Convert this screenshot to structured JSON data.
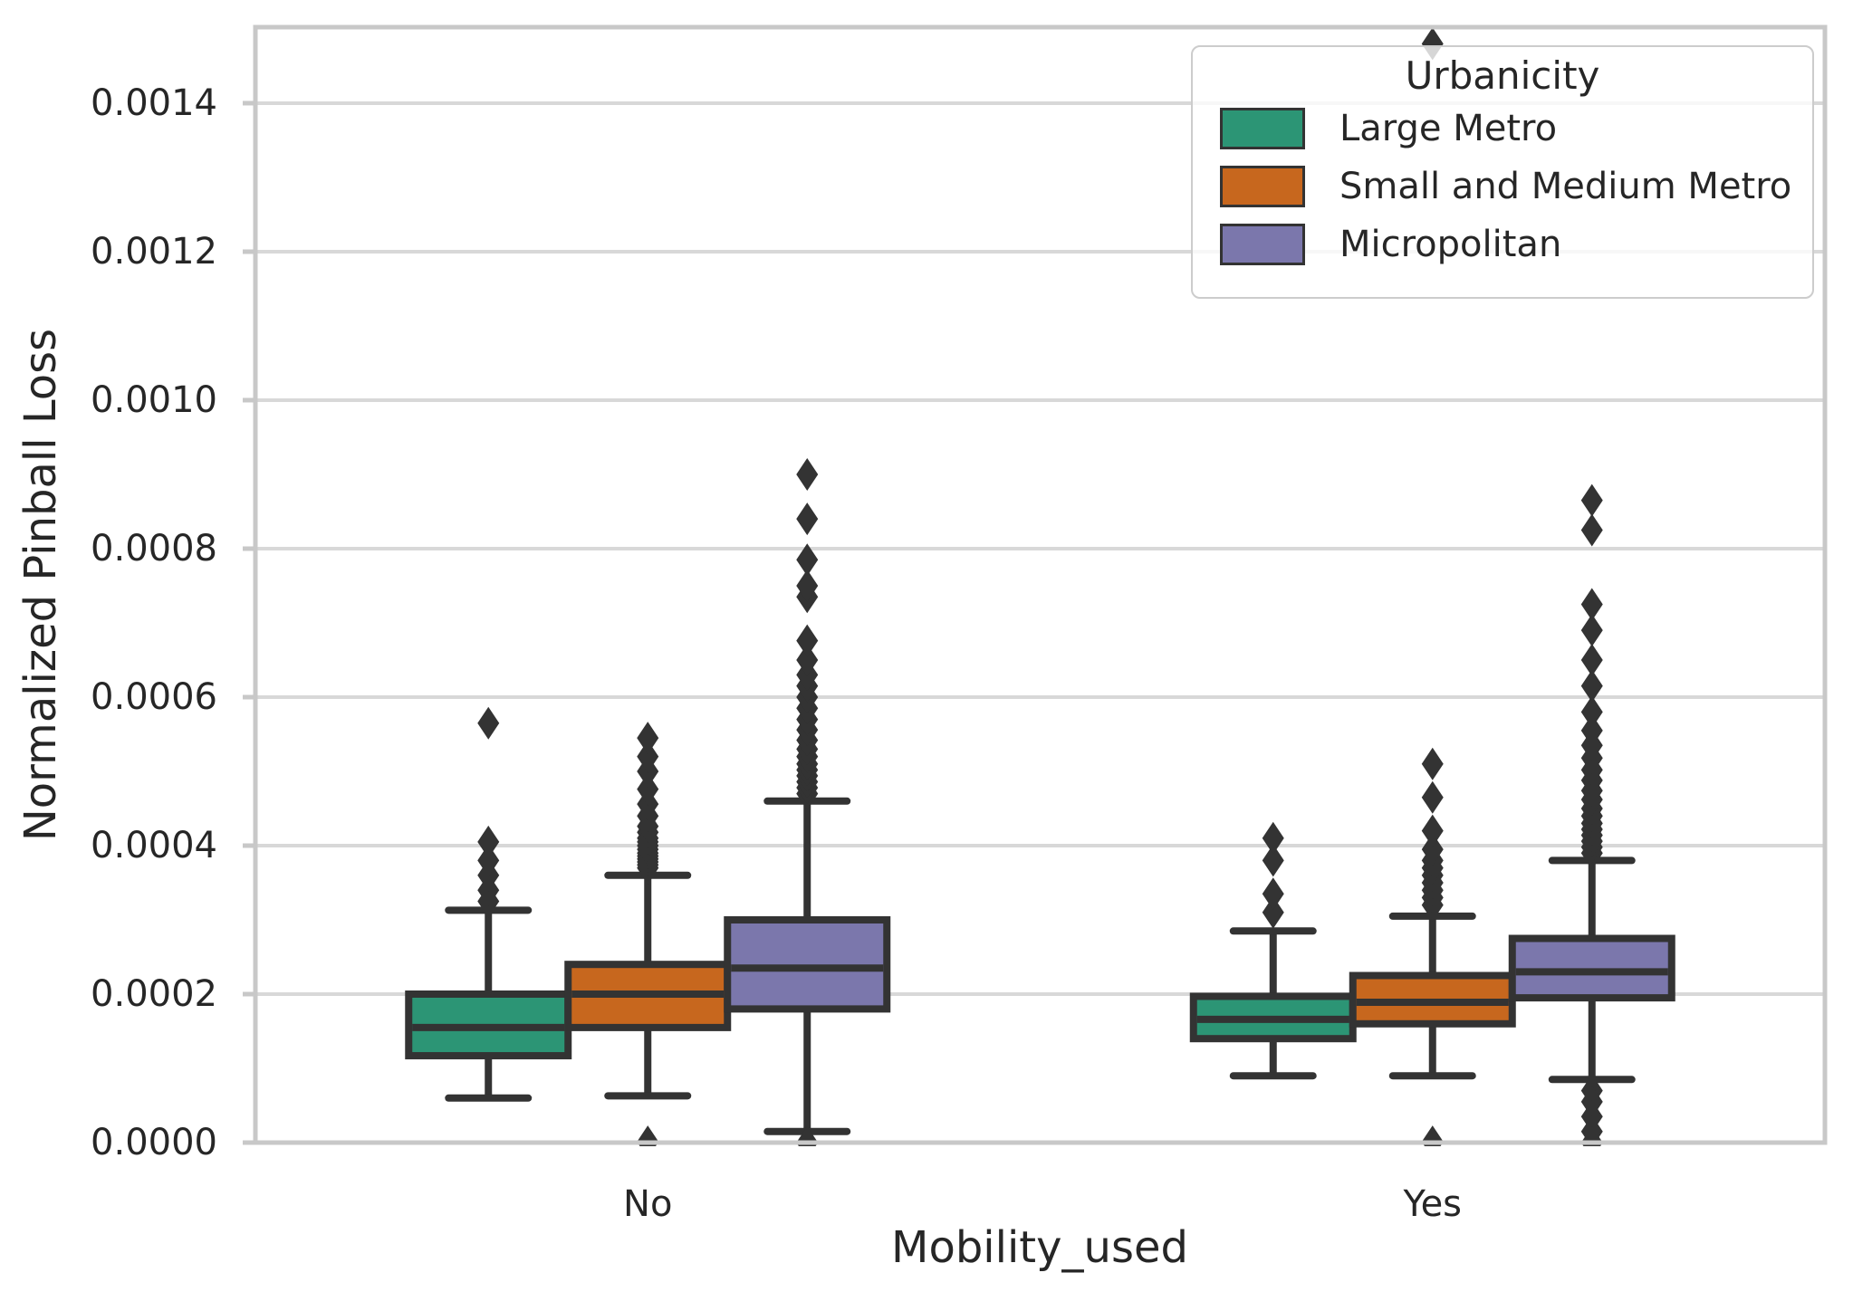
{
  "chart_data": {
    "type": "grouped_boxplot",
    "title": "",
    "xlabel": "Mobility_used",
    "ylabel": "Normalized Pinball Loss",
    "categories": [
      "No",
      "Yes"
    ],
    "legend": {
      "title": "Urbanicity",
      "position": "upper right"
    },
    "grid": "horizontal",
    "ylim": [
      0.0,
      0.0015024
    ],
    "y_ticks": [
      {
        "value": 0.0,
        "label": "0.0000"
      },
      {
        "value": 0.0002,
        "label": "0.0002"
      },
      {
        "value": 0.0004,
        "label": "0.0004"
      },
      {
        "value": 0.0006,
        "label": "0.0006"
      },
      {
        "value": 0.0008,
        "label": "0.0008"
      },
      {
        "value": 0.001,
        "label": "0.0010"
      },
      {
        "value": 0.0012,
        "label": "0.0012"
      },
      {
        "value": 0.0014,
        "label": "0.0014"
      }
    ],
    "colors": {
      "frame": "#c8c8c8",
      "grid": "#d8d8d8",
      "box_line": "#333333",
      "text": "#262626"
    },
    "series": [
      {
        "name": "Large Metro",
        "color": "#2c9575",
        "boxes": [
          {
            "category": "No",
            "q1": 0.000117,
            "median": 0.000155,
            "q3": 0.0002,
            "whisker_low": 6e-05,
            "whisker_high": 0.000313,
            "outliers": [
              0.000325,
              0.00034,
              0.00036,
              0.00038,
              0.000405,
              0.000565
            ]
          },
          {
            "category": "Yes",
            "q1": 0.00014,
            "median": 0.000166,
            "q3": 0.000197,
            "whisker_low": 9e-05,
            "whisker_high": 0.000285,
            "outliers": [
              0.00031,
              0.000335,
              0.00038,
              0.00041
            ]
          }
        ]
      },
      {
        "name": "Small and Medium Metro",
        "color": "#c7671e",
        "boxes": [
          {
            "category": "No",
            "q1": 0.000155,
            "median": 0.0002,
            "q3": 0.00024,
            "whisker_low": 6.3e-05,
            "whisker_high": 0.00036,
            "outliers": [
              0.00037,
              0.000374,
              0.000378,
              0.000382,
              0.000386,
              0.00039,
              0.000395,
              0.0004,
              0.000405,
              0.00041,
              0.000418,
              0.000426,
              0.00044,
              0.000456,
              0.000476,
              0.0005,
              0.00052,
              0.000545,
              1e-06
            ]
          },
          {
            "category": "Yes",
            "q1": 0.00016,
            "median": 0.000189,
            "q3": 0.000225,
            "whisker_low": 9e-05,
            "whisker_high": 0.000305,
            "outliers": [
              0.00032,
              0.00033,
              0.00034,
              0.00035,
              0.00036,
              0.00037,
              0.00038,
              0.000395,
              0.00042,
              0.000465,
              0.00051,
              0.00148,
              1e-06
            ]
          }
        ]
      },
      {
        "name": "Micropolitan",
        "color": "#7b77ac",
        "boxes": [
          {
            "category": "No",
            "q1": 0.00018,
            "median": 0.000235,
            "q3": 0.0003,
            "whisker_low": 1.5e-05,
            "whisker_high": 0.00046,
            "outliers": [
              0.00047,
              0.000478,
              0.000486,
              0.000494,
              0.000502,
              0.00051,
              0.00052,
              0.00053,
              0.000542,
              0.000556,
              0.00057,
              0.000585,
              0.0006,
              0.000615,
              0.00063,
              0.00065,
              0.000676,
              0.000735,
              0.00075,
              0.000785,
              0.00084,
              0.0009,
              0.0
            ]
          },
          {
            "category": "Yes",
            "q1": 0.000195,
            "median": 0.00023,
            "q3": 0.000275,
            "whisker_low": 8.5e-05,
            "whisker_high": 0.00038,
            "outliers": [
              0.00039,
              0.000398,
              0.000406,
              0.000414,
              0.000422,
              0.00043,
              0.00044,
              0.00045,
              0.000462,
              0.000474,
              0.000488,
              0.000502,
              0.000518,
              0.000535,
              0.000555,
              0.00058,
              0.000615,
              0.00065,
              0.00069,
              0.000725,
              0.000825,
              0.000865,
              7e-05,
              5.5e-05,
              3.5e-05,
              1.5e-05,
              0.0
            ]
          }
        ]
      }
    ]
  }
}
